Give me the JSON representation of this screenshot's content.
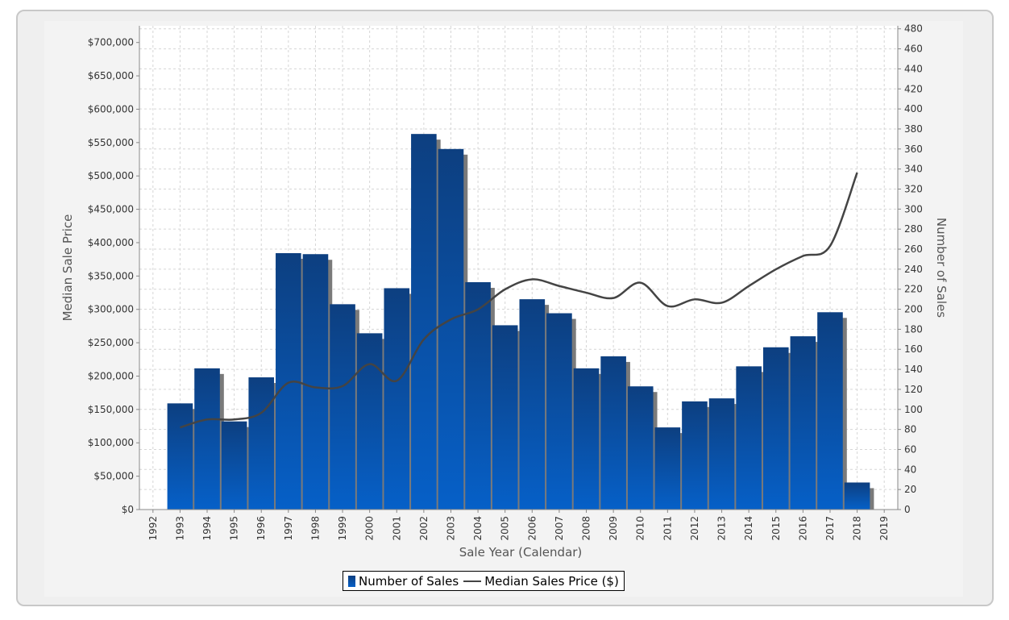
{
  "chart_data": {
    "type": "bar",
    "xlabel": "Sale Year (Calendar)",
    "ylabel_left": "Median Sale Price",
    "ylabel_right": "Number of Sales",
    "categories": [
      "1992",
      "1993",
      "1994",
      "1995",
      "1996",
      "1997",
      "1998",
      "1999",
      "2000",
      "2001",
      "2002",
      "2003",
      "2004",
      "2005",
      "2006",
      "2007",
      "2008",
      "2009",
      "2010",
      "2011",
      "2012",
      "2013",
      "2014",
      "2015",
      "2016",
      "2017",
      "2018",
      "2019"
    ],
    "y_left_ticks": [
      "$0",
      "$50,000",
      "$100,000",
      "$150,000",
      "$200,000",
      "$250,000",
      "$300,000",
      "$350,000",
      "$400,000",
      "$450,000",
      "$500,000",
      "$550,000",
      "$600,000",
      "$650,000",
      "$700,000"
    ],
    "y_left_range": [
      0,
      725000
    ],
    "y_right_ticks": [
      "0",
      "20",
      "40",
      "60",
      "80",
      "100",
      "120",
      "140",
      "160",
      "180",
      "200",
      "220",
      "240",
      "260",
      "280",
      "300",
      "320",
      "340",
      "360",
      "380",
      "400",
      "420",
      "440",
      "460",
      "480"
    ],
    "y_right_range": [
      0,
      483
    ],
    "grid": true,
    "legend_position": "bottom",
    "series": [
      {
        "name": "Number of Sales",
        "type": "bar",
        "axis": "right",
        "color_top": "#0d3f80",
        "color_bottom": "#0660c8",
        "values": [
          null,
          106,
          141,
          88,
          132,
          256,
          255,
          205,
          176,
          221,
          375,
          360,
          227,
          184,
          210,
          196,
          141,
          153,
          123,
          82,
          108,
          111,
          143,
          162,
          173,
          197,
          27,
          null
        ]
      },
      {
        "name": "Median Sales Price ($)",
        "type": "line",
        "axis": "left",
        "color": "#444444",
        "values": [
          null,
          123000,
          135000,
          135000,
          145000,
          190000,
          183000,
          185000,
          218000,
          193000,
          255000,
          285000,
          300000,
          330000,
          345000,
          335000,
          325000,
          317000,
          340000,
          305000,
          315000,
          310000,
          335000,
          360000,
          380000,
          395000,
          505000,
          null
        ]
      }
    ]
  }
}
